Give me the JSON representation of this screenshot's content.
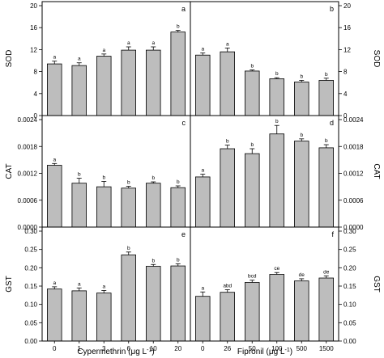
{
  "chart_data": [
    {
      "type": "bar",
      "panel_letter": "a",
      "categories": [
        "0",
        "1",
        "3",
        "6",
        "10",
        "20"
      ],
      "values": [
        9.4,
        9.1,
        10.8,
        11.9,
        11.9,
        15.2
      ],
      "errors": [
        0.5,
        0.5,
        0.4,
        0.6,
        0.6,
        0.3
      ],
      "letters": [
        "a",
        "a",
        "a",
        "a",
        "a",
        "b"
      ],
      "ylabel": "SOD",
      "ylim": [
        0,
        20
      ],
      "yticks": [
        "0",
        "4",
        "8",
        "12",
        "16",
        "20"
      ]
    },
    {
      "type": "bar",
      "panel_letter": "b",
      "categories": [
        "0",
        "26",
        "50",
        "100",
        "500",
        "1500"
      ],
      "values": [
        11.0,
        11.6,
        8.1,
        6.7,
        6.1,
        6.4
      ],
      "errors": [
        0.4,
        0.7,
        0.2,
        0.2,
        0.3,
        0.4
      ],
      "letters": [
        "a",
        "a",
        "b",
        "b",
        "b",
        "b"
      ],
      "ylabel": "SOD",
      "ylim": [
        0,
        20
      ],
      "yticks": [
        "0",
        "4",
        "8",
        "12",
        "16",
        "20"
      ]
    },
    {
      "type": "bar",
      "panel_letter": "c",
      "categories": [
        "0",
        "1",
        "3",
        "6",
        "10",
        "20"
      ],
      "values": [
        0.00138,
        0.00098,
        0.0009,
        0.00087,
        0.00098,
        0.00088
      ],
      "errors": [
        4e-05,
        0.00011,
        0.00012,
        4e-05,
        3e-05,
        4e-05
      ],
      "letters": [
        "a",
        "b",
        "b",
        "b",
        "b",
        "b"
      ],
      "ylabel": "CAT",
      "ylim": [
        0,
        0.0024
      ],
      "yticks": [
        "0.0000",
        "0.0006",
        "0.0012",
        "0.0018",
        "0.0024"
      ]
    },
    {
      "type": "bar",
      "panel_letter": "d",
      "categories": [
        "0",
        "26",
        "50",
        "100",
        "500",
        "1500"
      ],
      "values": [
        0.00112,
        0.00175,
        0.00164,
        0.00208,
        0.00192,
        0.00177
      ],
      "errors": [
        6e-05,
        8e-05,
        0.00011,
        0.00019,
        5e-05,
        7e-05
      ],
      "letters": [
        "a",
        "b",
        "b",
        "b",
        "b",
        "b"
      ],
      "ylabel": "CAT",
      "ylim": [
        0,
        0.0024
      ],
      "yticks": [
        "0.0000",
        "0.0006",
        "0.0012",
        "0.0018",
        "0.0024"
      ]
    },
    {
      "type": "bar",
      "panel_letter": "e",
      "categories": [
        "0",
        "1",
        "3",
        "6",
        "10",
        "20"
      ],
      "values": [
        0.142,
        0.137,
        0.131,
        0.235,
        0.204,
        0.205
      ],
      "errors": [
        0.006,
        0.008,
        0.007,
        0.008,
        0.005,
        0.006
      ],
      "letters": [
        "a",
        "a",
        "a",
        "b",
        "b",
        "b"
      ],
      "ylabel": "GST",
      "xlabel_main": "Cypermethrin (μg L",
      "xlabel_sup": "-1",
      "xlabel_end": ")",
      "ylim": [
        0,
        0.3
      ],
      "yticks": [
        "0.00",
        "0.05",
        "0.10",
        "0.15",
        "0.20",
        "0.25",
        "0.30"
      ]
    },
    {
      "type": "bar",
      "panel_letter": "f",
      "categories": [
        "0",
        "26",
        "50",
        "100",
        "500",
        "1500"
      ],
      "values": [
        0.122,
        0.133,
        0.16,
        0.182,
        0.164,
        0.172
      ],
      "errors": [
        0.012,
        0.007,
        0.006,
        0.005,
        0.006,
        0.006
      ],
      "letters": [
        "a",
        "abd",
        "bcd",
        "ce",
        "de",
        "de"
      ],
      "ylabel": "GST",
      "xlabel_main": "Fipronil (μg L",
      "xlabel_sup": "-1",
      "xlabel_end": ")",
      "ylim": [
        0,
        0.3
      ],
      "yticks": [
        "0.00",
        "0.05",
        "0.10",
        "0.15",
        "0.20",
        "0.25",
        "0.30"
      ]
    }
  ]
}
